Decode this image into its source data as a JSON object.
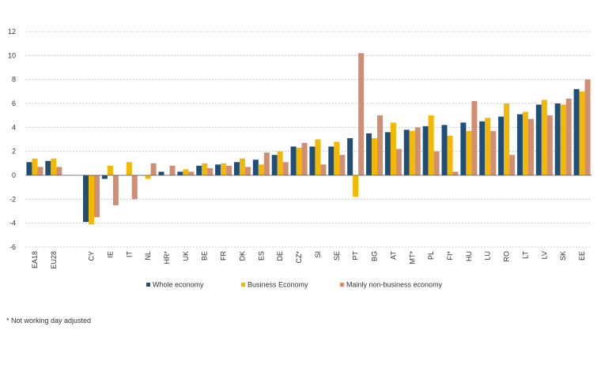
{
  "chart_data": {
    "type": "bar",
    "ylim": [
      -6,
      12
    ],
    "yticks": [
      -6,
      -4,
      -2,
      0,
      2,
      4,
      6,
      8,
      10,
      12
    ],
    "grid": true,
    "legend_position": "bottom",
    "categories": [
      "EA18",
      "EU28",
      "",
      "CY",
      "IE",
      "IT",
      "NL",
      "HR*",
      "UK",
      "BE",
      "FR",
      "DK",
      "ES",
      "DE",
      "CZ*",
      "SI",
      "SE",
      "PT",
      "BG",
      "AT",
      "MT*",
      "PL",
      "FI*",
      "HU",
      "LU",
      "RO",
      "LT",
      "LV",
      "SK",
      "EE"
    ],
    "series": [
      {
        "name": "Whole economy",
        "color": "#1f4e79",
        "values": [
          1.1,
          1.2,
          null,
          -3.9,
          -0.3,
          0.0,
          0.0,
          0.3,
          0.3,
          0.8,
          0.9,
          1.1,
          1.3,
          1.7,
          2.4,
          2.4,
          2.4,
          3.1,
          3.5,
          3.6,
          3.8,
          4.1,
          4.2,
          4.4,
          4.5,
          4.9,
          5.1,
          5.9,
          6.0,
          7.2
        ]
      },
      {
        "name": "Business Economy",
        "color": "#f5b800",
        "values": [
          1.4,
          1.4,
          null,
          -4.1,
          0.8,
          1.1,
          -0.3,
          0.0,
          0.5,
          1.0,
          1.0,
          1.4,
          0.9,
          2.0,
          2.3,
          3.0,
          2.8,
          -1.8,
          3.1,
          4.4,
          3.7,
          5.0,
          3.3,
          3.7,
          4.8,
          6.0,
          5.3,
          6.3,
          5.9,
          7.0
        ]
      },
      {
        "name": "Mainly non-business economy",
        "color": "#d08e72",
        "values": [
          0.7,
          0.7,
          null,
          -3.5,
          -2.5,
          -2.0,
          1.0,
          0.8,
          0.3,
          0.6,
          0.8,
          0.7,
          1.9,
          1.1,
          2.7,
          0.9,
          1.7,
          10.2,
          5.0,
          2.2,
          4.0,
          2.0,
          0.3,
          6.2,
          3.7,
          1.7,
          4.7,
          5.0,
          6.4,
          8.0
        ]
      }
    ]
  },
  "footnote": "* Not working day adjusted"
}
